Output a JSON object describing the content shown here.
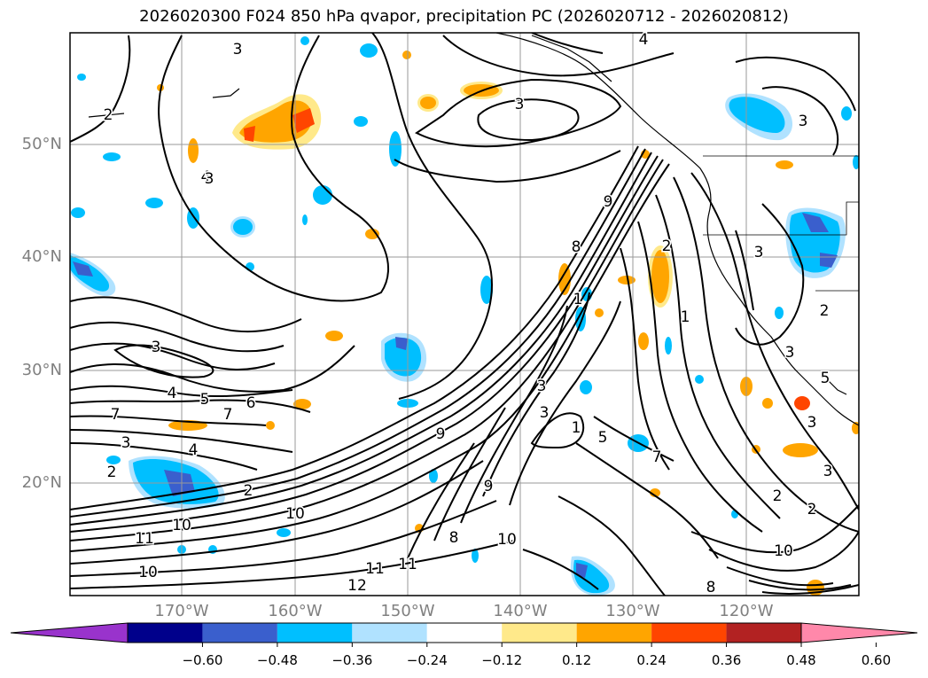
{
  "title": "2026020300 F024 850 hPa qvapor, precipitation PC (2026020712 - 2026020812)",
  "lat_labels": [
    "50°N",
    "40°N",
    "30°N",
    "20°N"
  ],
  "lon_labels": [
    "170°W",
    "160°W",
    "150°W",
    "140°W",
    "130°W",
    "120°W"
  ],
  "colorbar": {
    "ticks": [
      "−0.60",
      "−0.48",
      "−0.36",
      "−0.24",
      "−0.12",
      "0.12",
      "0.24",
      "0.36",
      "0.48",
      "0.60"
    ],
    "colors": [
      "#9933cc",
      "#00008b",
      "#3a5fcd",
      "#00bfff",
      "#b0e2ff",
      "#ffffff",
      "#ffe98a",
      "#ffa500",
      "#ff4500",
      "#b22222",
      "#ff88aa"
    ]
  },
  "contour_labels": [
    "3",
    "4",
    "2",
    "3",
    "3",
    "4",
    "3",
    "2",
    "3",
    "4",
    "5",
    "6",
    "7",
    "7",
    "3",
    "2",
    "4",
    "2",
    "5",
    "9",
    "9",
    "10",
    "10",
    "11",
    "11",
    "12",
    "10",
    "8",
    "1",
    "2",
    "3",
    "5",
    "3",
    "1",
    "7",
    "8",
    "9",
    "10",
    "11",
    "10",
    "2",
    "3",
    "3",
    "2",
    "3",
    "3",
    "1",
    "2",
    "8"
  ],
  "shading_colors": {
    "blue_light": "#b0e2ff",
    "blue": "#00bfff",
    "blue_dark": "#3a5fcd",
    "navy": "#00008b",
    "purple": "#9933cc",
    "yellow": "#ffe98a",
    "orange": "#ffa500",
    "red": "#ff4500"
  }
}
